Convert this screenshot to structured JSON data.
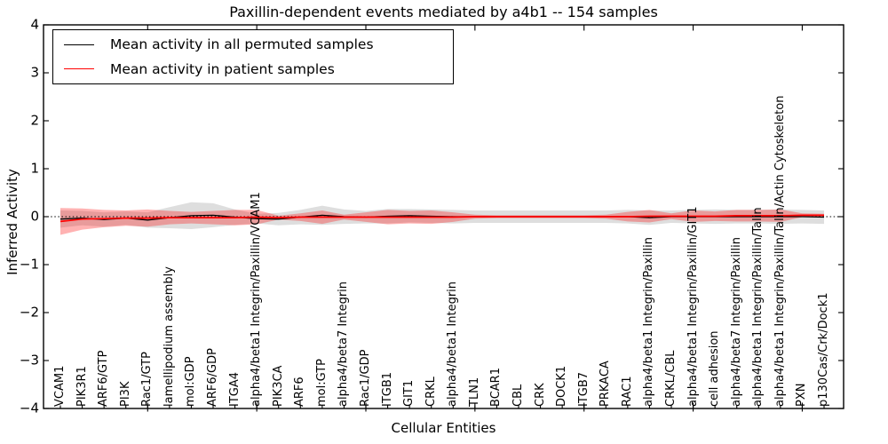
{
  "title": "Paxillin-dependent events mediated by a4b1 -- 154 samples",
  "legend": {
    "entries": [
      {
        "label": "Mean activity in all permuted samples",
        "color": "#000000"
      },
      {
        "label": "Mean activity in patient samples",
        "color": "#ff0000"
      }
    ]
  },
  "chart_data": {
    "type": "line",
    "title": "Paxillin-dependent events mediated by a4b1 -- 154 samples",
    "xlabel": "Cellular Entities",
    "ylabel": "Inferred Activity",
    "ylim": [
      -4,
      4
    ],
    "yticks": [
      4,
      3,
      2,
      1,
      0,
      -1,
      -2,
      -3,
      -4
    ],
    "ytick_labels": [
      "4",
      "3",
      "2",
      "1",
      "0",
      "−1",
      "−2",
      "−3",
      "−4"
    ],
    "grid": false,
    "legend_position": "upper left",
    "zero_reference_line": true,
    "categories": [
      "VCAM1",
      "PIK3R1",
      "ARF6/GTP",
      "PI3K",
      "Rac1/GTP",
      "lamellipodium assembly",
      "mol:GDP",
      "ARF6/GDP",
      "ITGA4",
      "alpha4/beta1 Integrin/Paxillin/VCAM1",
      "PIK3CA",
      "ARF6",
      "mol:GTP",
      "alpha4/beta7 Integrin",
      "Rac1/GDP",
      "ITGB1",
      "GIT1",
      "CRKL",
      "alpha4/beta1 Integrin",
      "TLN1",
      "BCAR1",
      "CBL",
      "CRK",
      "DOCK1",
      "ITGB7",
      "PRKACA",
      "RAC1",
      "alpha4/beta1 Integrin/Paxillin",
      "CRKL/CBL",
      "alpha4/beta1 Integrin/Paxillin/GIT1",
      "cell adhesion",
      "alpha4/beta7 Integrin/Paxillin",
      "alpha4/beta1 Integrin/Paxillin/Talin",
      "alpha4/beta1 Integrin/Paxillin/Talin/Actin Cytoskeleton",
      "PXN",
      "p130Cas/Crk/Dock1"
    ],
    "series": [
      {
        "name": "Mean activity in all permuted samples",
        "color": "#000000",
        "band_color": "rgba(0,0,0,0.13)",
        "values": [
          -0.05,
          -0.03,
          -0.06,
          -0.03,
          -0.07,
          -0.02,
          0.02,
          0.03,
          -0.01,
          -0.04,
          -0.05,
          -0.01,
          0.03,
          0.0,
          -0.01,
          0.01,
          0.02,
          0.01,
          0.0,
          0.0,
          0.0,
          0.0,
          0.0,
          0.0,
          0.0,
          0.0,
          0.0,
          -0.02,
          0.0,
          0.0,
          0.0,
          0.0,
          0.0,
          0.0,
          0.0,
          -0.01
        ],
        "band_halfwidth": [
          0.18,
          0.15,
          0.15,
          0.14,
          0.16,
          0.22,
          0.28,
          0.25,
          0.16,
          0.1,
          0.13,
          0.15,
          0.2,
          0.15,
          0.13,
          0.15,
          0.14,
          0.14,
          0.14,
          0.13,
          0.13,
          0.13,
          0.13,
          0.13,
          0.13,
          0.13,
          0.14,
          0.15,
          0.13,
          0.14,
          0.15,
          0.14,
          0.14,
          0.15,
          0.14,
          0.14
        ]
      },
      {
        "name": "Mean activity in patient samples",
        "color": "#ff0000",
        "band_color": "rgba(255,0,0,0.30)",
        "values": [
          -0.1,
          -0.05,
          -0.04,
          -0.03,
          -0.03,
          -0.02,
          -0.02,
          -0.02,
          -0.02,
          -0.01,
          -0.02,
          -0.01,
          -0.01,
          -0.01,
          -0.01,
          -0.01,
          -0.01,
          -0.01,
          -0.01,
          0.0,
          0.0,
          0.0,
          0.0,
          0.0,
          0.0,
          0.0,
          0.0,
          0.01,
          0.01,
          0.01,
          0.01,
          0.02,
          0.02,
          0.02,
          0.03,
          0.03
        ],
        "band_halfwidth": [
          0.28,
          0.22,
          0.18,
          0.16,
          0.18,
          0.14,
          0.12,
          0.14,
          0.16,
          0.15,
          0.04,
          0.08,
          0.14,
          0.05,
          0.1,
          0.15,
          0.13,
          0.14,
          0.1,
          0.04,
          0.03,
          0.03,
          0.03,
          0.03,
          0.03,
          0.04,
          0.1,
          0.13,
          0.06,
          0.12,
          0.1,
          0.12,
          0.12,
          0.13,
          0.04,
          0.03
        ]
      }
    ]
  }
}
